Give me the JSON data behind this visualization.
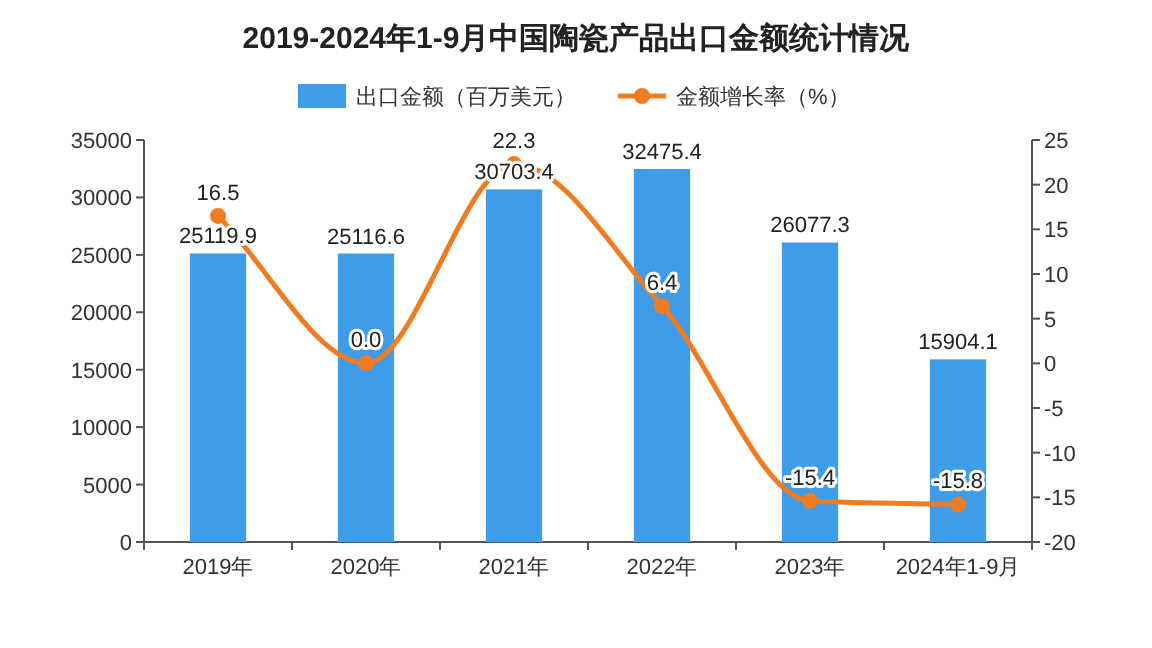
{
  "chart_data": {
    "type": "bar",
    "title": "2019-2024年1-9月中国陶瓷产品出口金额统计情况",
    "categories": [
      "2019年",
      "2020年",
      "2021年",
      "2022年",
      "2023年",
      "2024年1-9月"
    ],
    "series": [
      {
        "name": "出口金额（百万美元）",
        "color": "#3f9ce8",
        "values": [
          25119.9,
          25116.6,
          30703.4,
          32475.4,
          26077.3,
          15904.1
        ],
        "value_labels": [
          "25119.9",
          "25116.6",
          "30703.4",
          "32475.4",
          "26077.3",
          "15904.1"
        ]
      },
      {
        "name": "金额增长率（%）",
        "type": "line",
        "axis": "y2",
        "color": "#f07c22",
        "values": [
          16.5,
          0.0,
          22.3,
          6.4,
          -15.4,
          -15.8
        ],
        "value_labels": [
          "16.5",
          "0.0",
          "22.3",
          "6.4",
          "-15.4",
          "-15.8"
        ]
      }
    ],
    "ylim": [
      0,
      35000
    ],
    "yticks": [
      0,
      5000,
      10000,
      15000,
      20000,
      25000,
      30000,
      35000
    ],
    "y2lim": [
      -20,
      25
    ],
    "y2ticks": [
      -20,
      -15,
      -10,
      -5,
      0,
      5,
      10,
      15,
      20,
      25
    ],
    "legend": "top",
    "marker": "circle"
  }
}
